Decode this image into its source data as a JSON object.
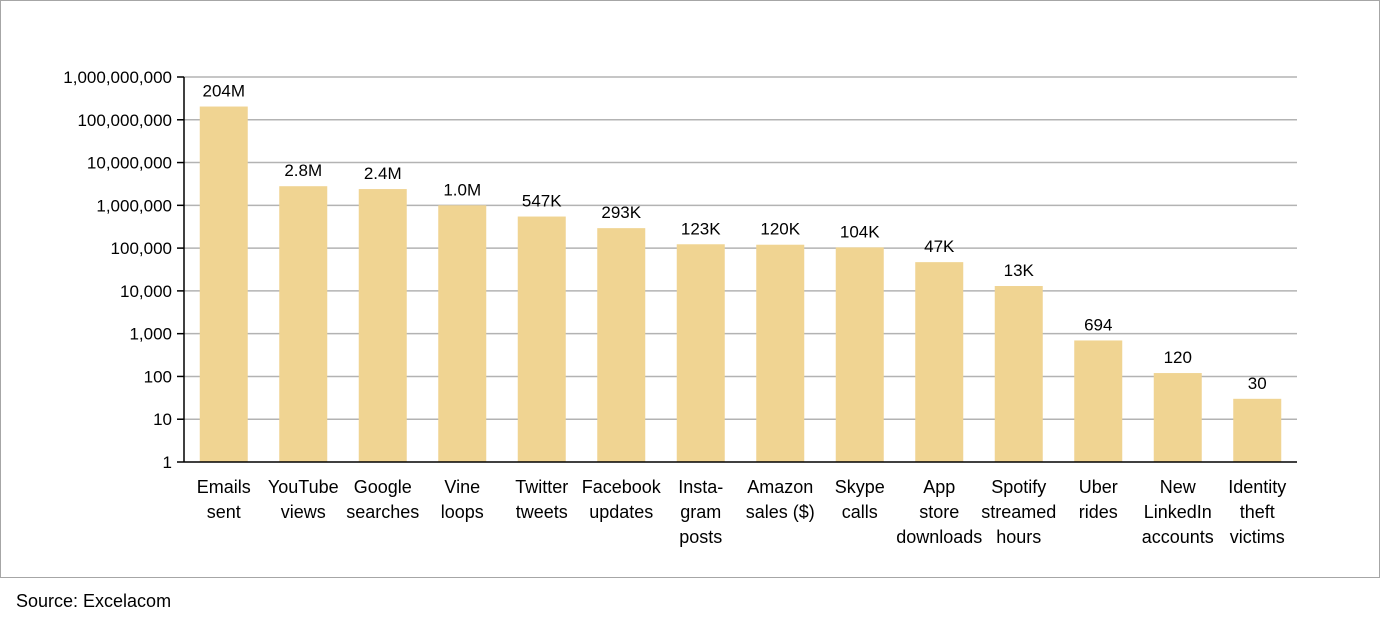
{
  "chart_data": {
    "type": "bar",
    "scale": "log10",
    "grid": true,
    "legend": "none",
    "ylim": [
      1,
      1000000000
    ],
    "y_ticks": [
      1,
      10,
      100,
      1000,
      10000,
      100000,
      1000000,
      10000000,
      100000000,
      1000000000
    ],
    "y_tick_labels": [
      "1",
      "10",
      "100",
      "1,000",
      "10,000",
      "100,000",
      "1,000,000",
      "10,000,000",
      "100,000,000",
      "1,000,000,000"
    ],
    "categories": [
      [
        "Emails",
        "sent"
      ],
      [
        "YouTube",
        "views"
      ],
      [
        "Google",
        "searches"
      ],
      [
        "Vine",
        "loops"
      ],
      [
        "Twitter",
        "tweets"
      ],
      [
        "Facebook",
        "updates"
      ],
      [
        "Insta-",
        "gram",
        "posts"
      ],
      [
        "Amazon",
        "sales ($)"
      ],
      [
        "Skype",
        "calls"
      ],
      [
        "App",
        "store",
        "downloads"
      ],
      [
        "Spotify",
        "streamed",
        "hours"
      ],
      [
        "Uber",
        "rides"
      ],
      [
        "New",
        "LinkedIn",
        "accounts"
      ],
      [
        "Identity",
        "theft",
        "victims"
      ]
    ],
    "values": [
      204000000,
      2800000,
      2400000,
      1000000,
      547000,
      293000,
      123000,
      120000,
      104000,
      47000,
      13000,
      694,
      120,
      30
    ],
    "data_labels": [
      "204M",
      "2.8M",
      "2.4M",
      "1.0M",
      "547K",
      "293K",
      "123K",
      "120K",
      "104K",
      "47K",
      "13K",
      "694",
      "120",
      "30"
    ],
    "bar_color": "#f0d492",
    "grid_color": "#b3b3b3",
    "axis_color": "#000000"
  },
  "source": "Source: Excelacom"
}
